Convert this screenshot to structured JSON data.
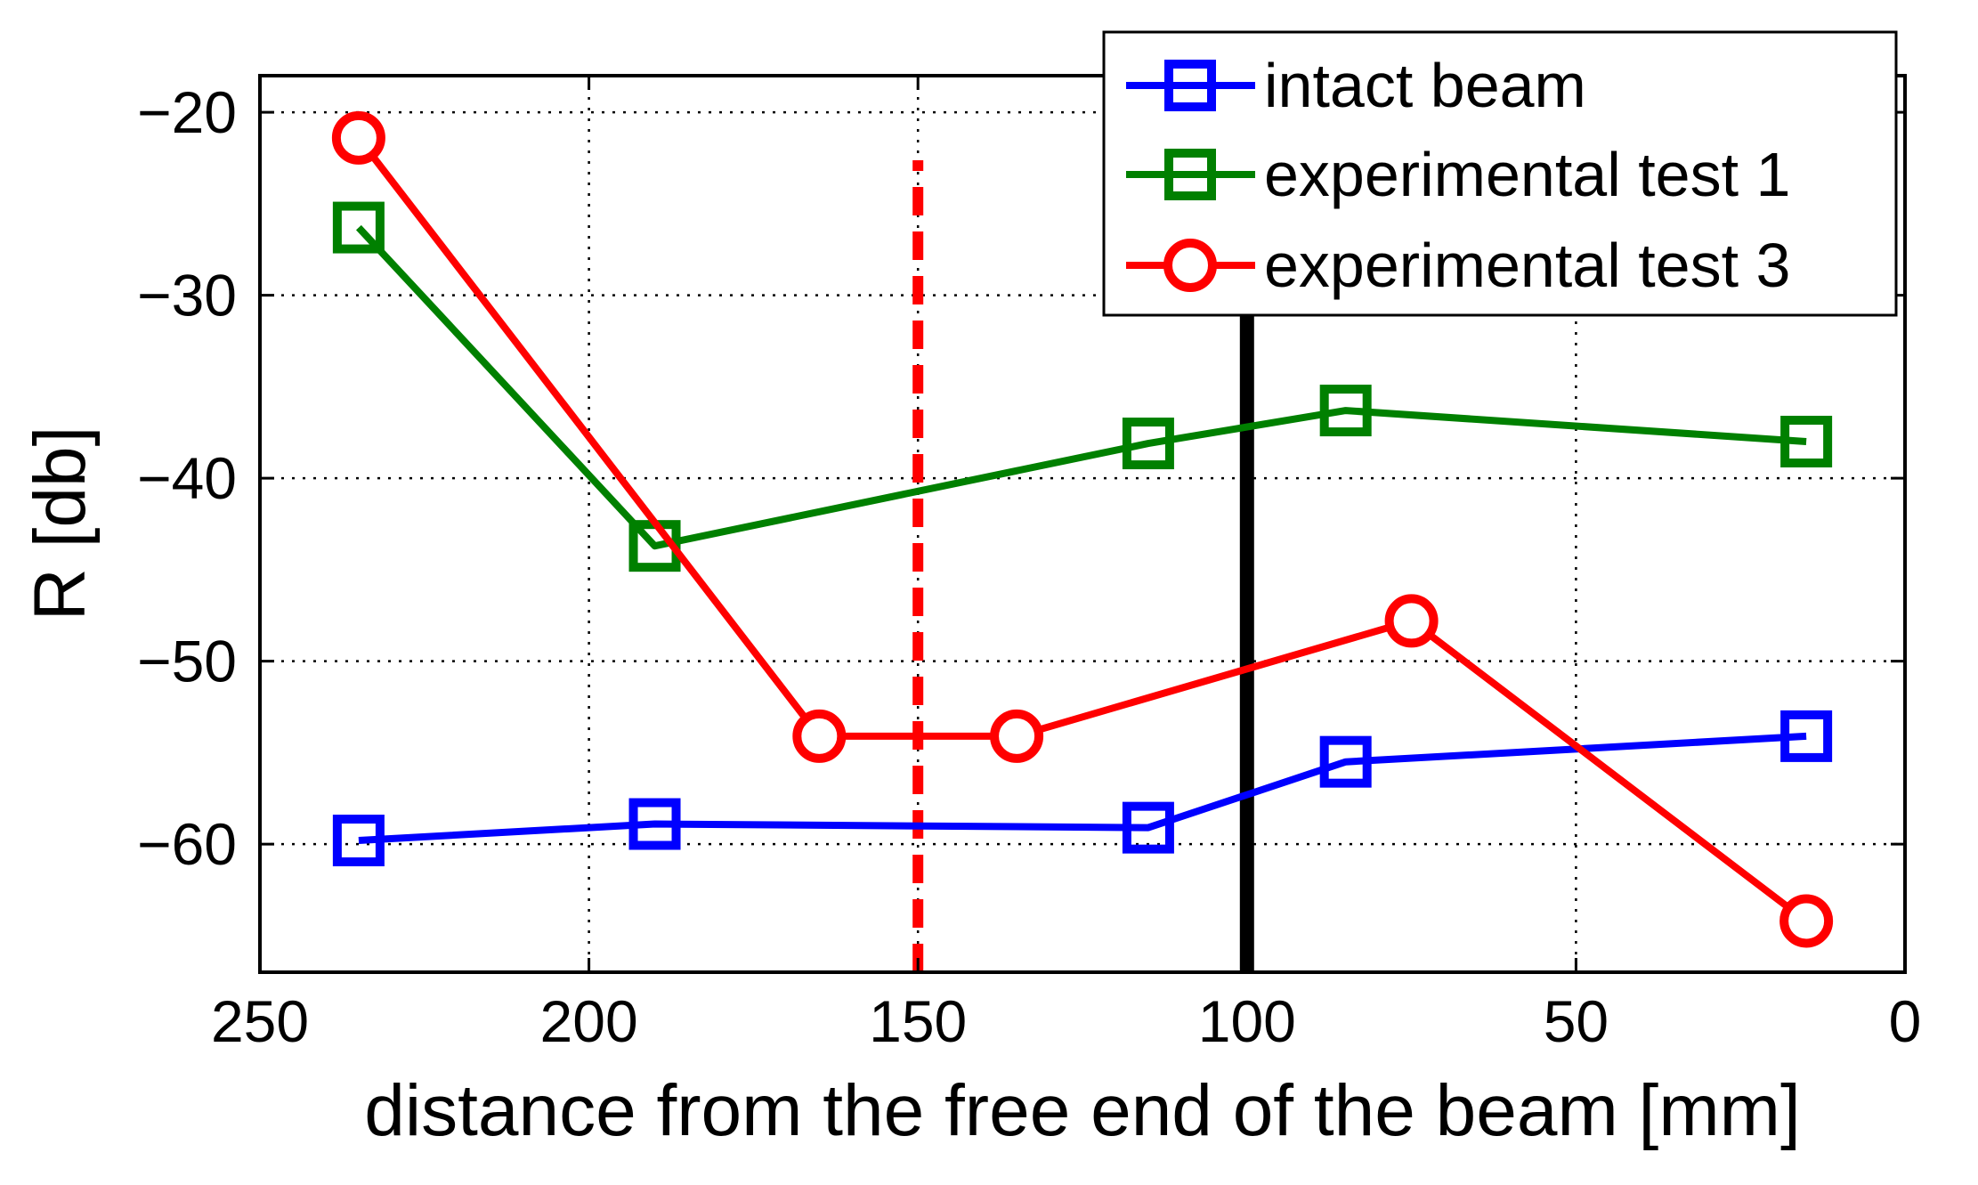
{
  "chart_data": {
    "type": "line",
    "title": "",
    "xlabel": "distance from the free end of the beam [mm]",
    "ylabel": "R [db]",
    "xlim": [
      250,
      0
    ],
    "ylim": [
      -67,
      -18
    ],
    "x_ticks": [
      250,
      200,
      150,
      100,
      50,
      0
    ],
    "y_ticks": [
      -20,
      -30,
      -40,
      -50,
      -60
    ],
    "x_tick_labels": [
      "250",
      "200",
      "150",
      "100",
      "50",
      "0"
    ],
    "y_tick_labels": [
      "−20",
      "−30",
      "−40",
      "−50",
      "−60"
    ],
    "grid": true,
    "legend_position": "top-right",
    "reference_lines": [
      {
        "name": "red dashed line",
        "x": 150,
        "style": "dashed",
        "color": "#ff0000"
      },
      {
        "name": "black solid line",
        "x": 100,
        "style": "solid",
        "color": "#000000"
      }
    ],
    "series": [
      {
        "name": "intact beam",
        "color": "#0000ff",
        "marker": "square",
        "x": [
          235,
          190,
          115,
          85,
          15
        ],
        "values": [
          -59.8,
          -58.9,
          -59.1,
          -55.5,
          -54.1
        ]
      },
      {
        "name": "experimental test 1",
        "color": "#008000",
        "marker": "square",
        "x": [
          235,
          190,
          115,
          85,
          15
        ],
        "values": [
          -26.3,
          -43.7,
          -38.1,
          -36.3,
          -38.0
        ]
      },
      {
        "name": "experimental test 3",
        "color": "#ff0000",
        "marker": "circle",
        "x": [
          235,
          165,
          135,
          75,
          15
        ],
        "values": [
          -21.4,
          -54.1,
          -54.1,
          -47.8,
          -64.2
        ]
      }
    ]
  }
}
